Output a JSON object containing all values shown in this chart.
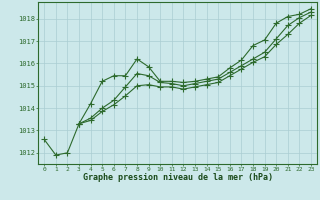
{
  "title": "Graphe pression niveau de la mer (hPa)",
  "background_color": "#cce8ea",
  "grid_color": "#aacdd2",
  "line_color": "#2d6a2d",
  "xlim": [
    -0.5,
    23.5
  ],
  "ylim": [
    1011.5,
    1018.75
  ],
  "yticks": [
    1012,
    1013,
    1014,
    1015,
    1016,
    1017,
    1018
  ],
  "xtick_labels": [
    "0",
    "1",
    "2",
    "3",
    "4",
    "5",
    "6",
    "7",
    "8",
    "9",
    "10",
    "11",
    "12",
    "13",
    "14",
    "15",
    "16",
    "17",
    "18",
    "19",
    "20",
    "21",
    "22",
    "23"
  ],
  "series": [
    [
      1012.6,
      1011.9,
      1012.0,
      1013.3,
      1014.2,
      1015.2,
      1015.45,
      1015.45,
      1016.2,
      1015.85,
      1015.2,
      1015.2,
      1015.15,
      1015.2,
      1015.3,
      1015.4,
      1015.8,
      1016.15,
      1016.8,
      1017.05,
      1017.8,
      1018.1,
      1018.2,
      1018.45
    ],
    [
      null,
      null,
      null,
      1013.3,
      1013.55,
      1014.0,
      1014.35,
      1014.95,
      1015.55,
      1015.45,
      1015.15,
      1015.1,
      1015.0,
      1015.1,
      1015.2,
      1015.3,
      1015.6,
      1015.9,
      1016.2,
      1016.5,
      1017.1,
      1017.7,
      1018.05,
      1018.3
    ],
    [
      null,
      null,
      null,
      1013.3,
      1013.45,
      1013.85,
      1014.15,
      1014.55,
      1015.0,
      1015.05,
      1014.95,
      1014.95,
      1014.85,
      1014.95,
      1015.05,
      1015.15,
      1015.45,
      1015.75,
      1016.05,
      1016.3,
      1016.85,
      1017.3,
      1017.8,
      1018.15
    ]
  ]
}
